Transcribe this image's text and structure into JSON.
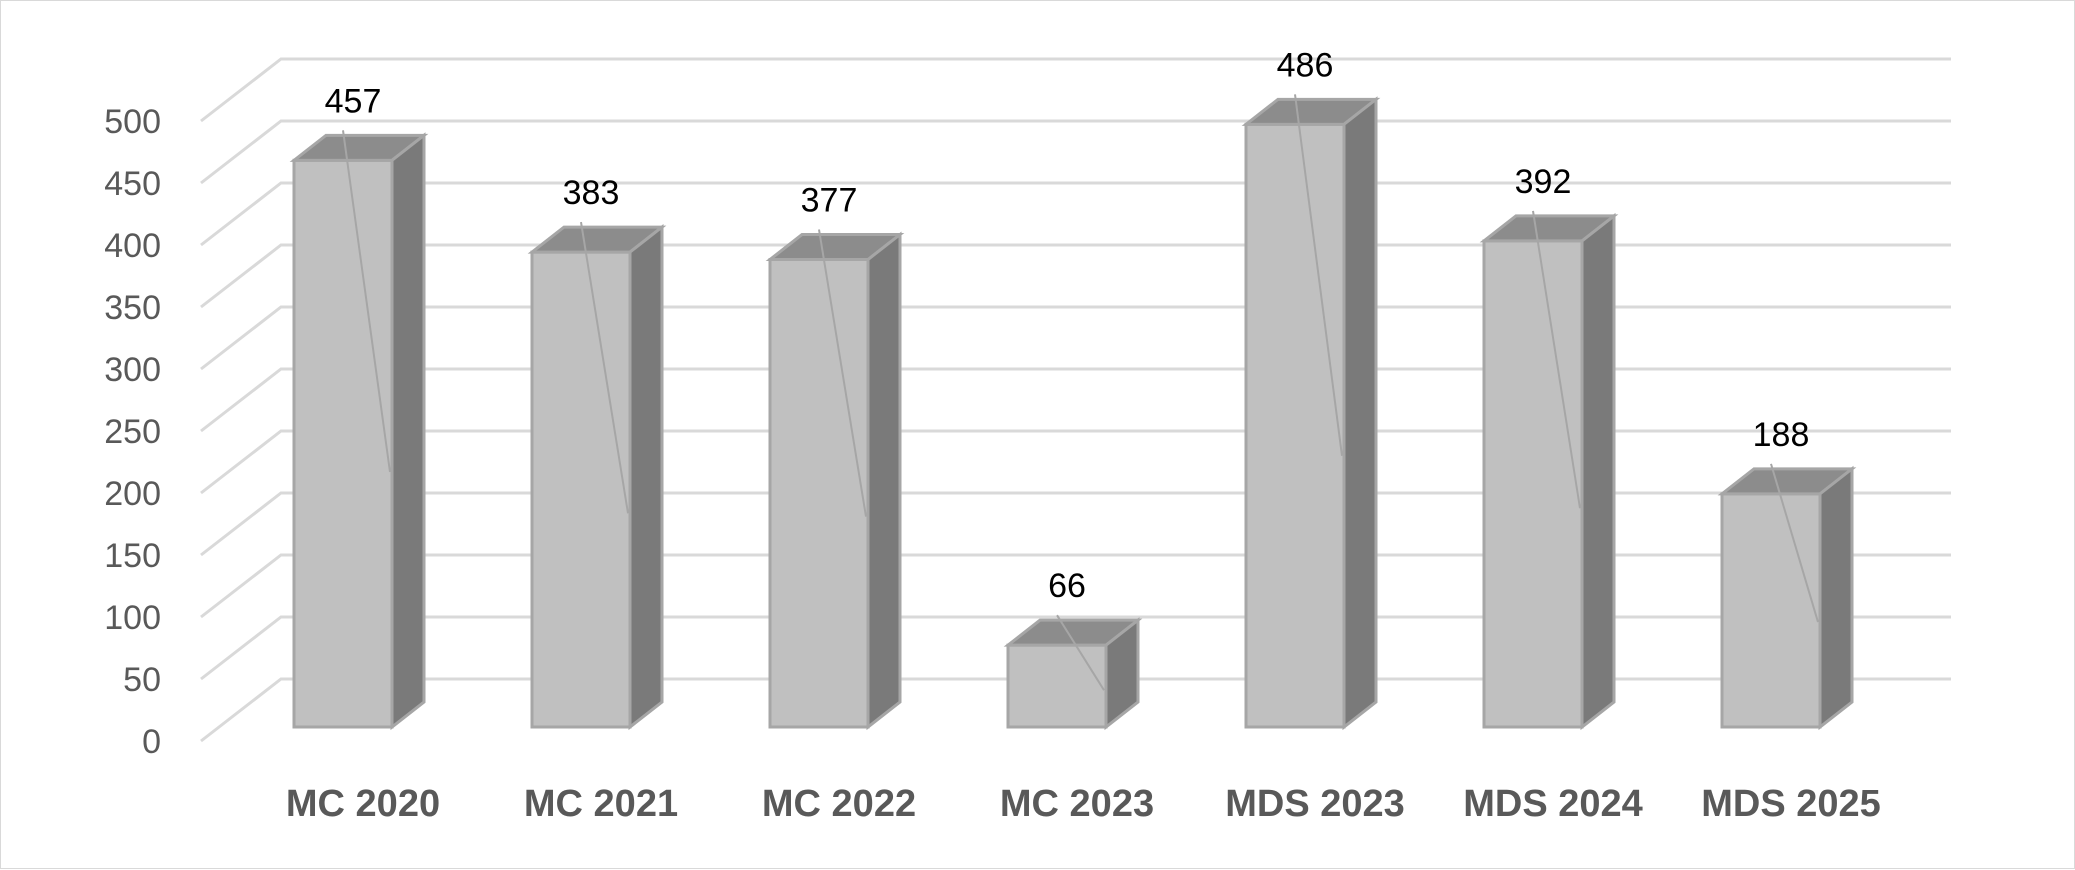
{
  "chart_data": {
    "type": "bar",
    "style": "3d-column",
    "categories": [
      "MC 2020",
      "MC 2021",
      "MC 2022",
      "MC 2023",
      "MDS 2023",
      "MDS 2024",
      "MDS 2025"
    ],
    "values": [
      457,
      383,
      377,
      66,
      486,
      392,
      188
    ],
    "data_labels": [
      "457",
      "383",
      "377",
      "66",
      "486",
      "392",
      "188"
    ],
    "yticks": [
      "0",
      "50",
      "100",
      "150",
      "200",
      "250",
      "300",
      "350",
      "400",
      "450",
      "500"
    ],
    "ylim": [
      0,
      500
    ],
    "grid": true,
    "legend": "none",
    "colors": {
      "front": "#c0c0c0",
      "top": "#8c8c8c",
      "side": "#7a7a7a",
      "edge": "#a6a6a6",
      "grid": "#d9d9d9"
    }
  }
}
